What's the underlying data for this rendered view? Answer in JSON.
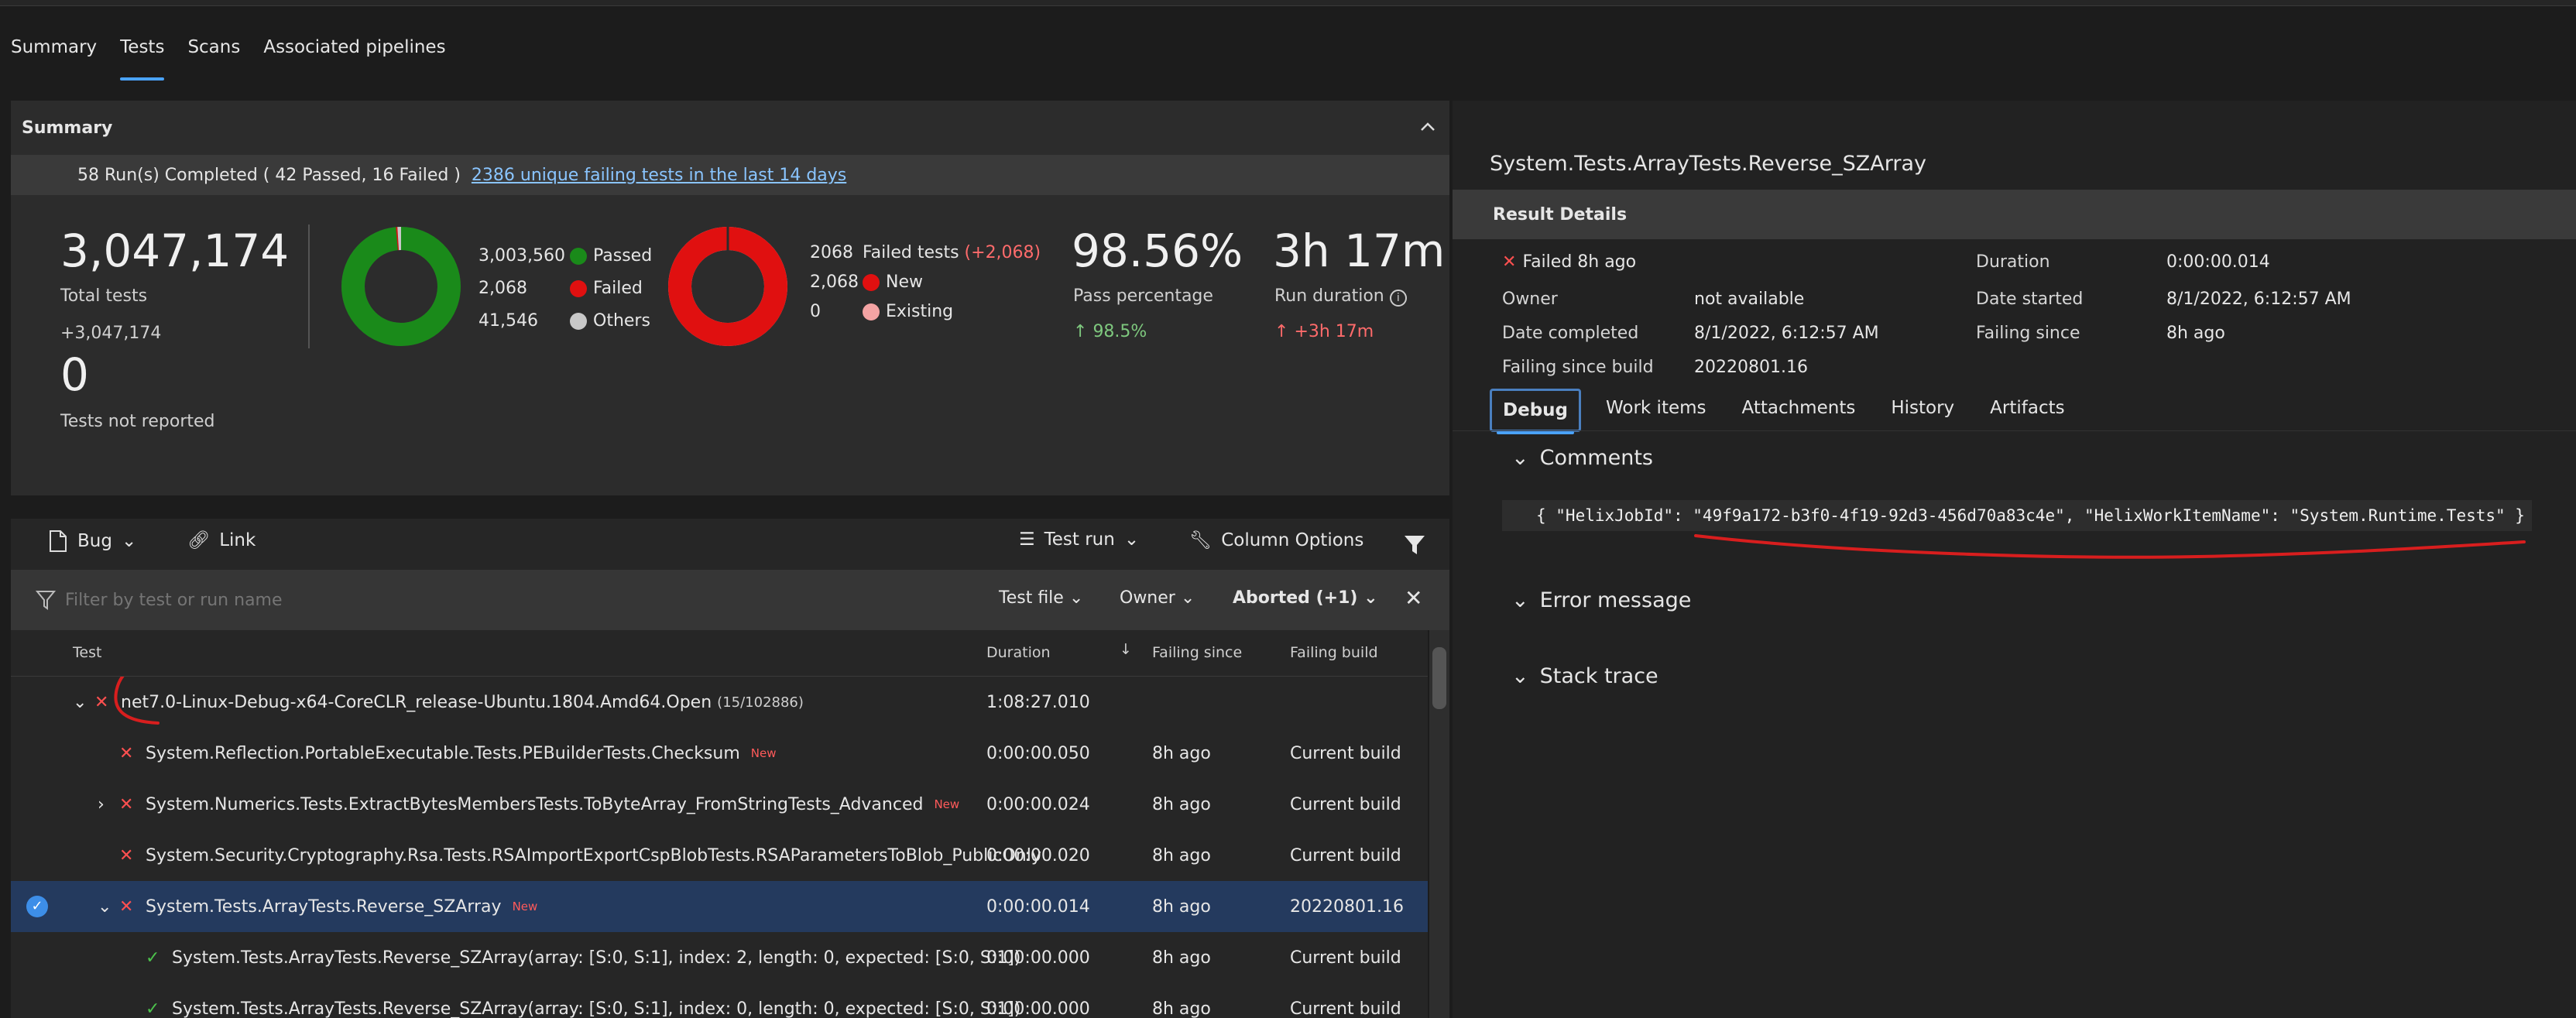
{
  "nav": {
    "tabs": [
      {
        "label": "Summary"
      },
      {
        "label": "Tests"
      },
      {
        "label": "Scans"
      },
      {
        "label": "Associated pipelines"
      }
    ],
    "active": "Tests"
  },
  "summary": {
    "header": "Summary",
    "runs_text": "58 Run(s) Completed ( 42 Passed, 16 Failed )",
    "unique_failing_link": "2386 unique failing tests in the last 14 days",
    "total_tests": "3,047,174",
    "total_tests_label": "Total tests",
    "total_delta": "+3,047,174",
    "not_reported": "0",
    "not_reported_label": "Tests not reported",
    "outcomes": [
      {
        "value": "3,003,560",
        "label": "Passed",
        "color": "#1a8a1a"
      },
      {
        "value": "2,068",
        "label": "Failed",
        "color": "#e01010"
      },
      {
        "value": "41,546",
        "label": "Others",
        "color": "#c8c8c8"
      }
    ],
    "outcome_fractions": {
      "passed": 0.9857,
      "failed": 0.0007,
      "others": 0.0136
    },
    "failed_title": "Failed tests",
    "failed_delta": "(+2,068)",
    "failed_breakdown": [
      {
        "value": "2068",
        "label": ""
      },
      {
        "value": "2,068",
        "label": "New",
        "color": "#e01010"
      },
      {
        "value": "0",
        "label": "Existing",
        "color": "#f4a3a3"
      }
    ],
    "new_fraction": 1.0,
    "pass_percentage": "98.56%",
    "pass_label": "Pass percentage",
    "pass_delta": "98.5%",
    "run_duration": "3h 17m",
    "run_label": "Run duration",
    "run_delta": "+3h 17m"
  },
  "toolbar": {
    "bug": "Bug",
    "link": "Link",
    "test_run": "Test run",
    "column_options": "Column Options"
  },
  "filter": {
    "placeholder": "Filter by test or run name",
    "test_file": "Test file",
    "owner": "Owner",
    "outcome": "Aborted (+1)"
  },
  "table": {
    "headers": {
      "test": "Test",
      "duration": "Duration",
      "failing_since": "Failing since",
      "failing_build": "Failing build"
    },
    "group": {
      "name": "net7.0-Linux-Debug-x64-CoreCLR_release-Ubuntu.1804.Amd64.Open",
      "count": "(15/102886)",
      "duration": "1:08:27.010"
    },
    "rows": [
      {
        "name": "System.Reflection.PortableExecutable.Tests.PEBuilderTests.Checksum",
        "tag": "New",
        "duration": "0:00:00.050",
        "since": "8h ago",
        "build": "Current build"
      },
      {
        "name": "System.Numerics.Tests.ExtractBytesMembersTests.ToByteArray_FromStringTests_Advanced",
        "tag": "New",
        "duration": "0:00:00.024",
        "since": "8h ago",
        "build": "Current build"
      },
      {
        "name": "System.Security.Cryptography.Rsa.Tests.RSAImportExportCspBlobTests.RSAParametersToBlob_PublicOnly",
        "tag": "",
        "duration": "0:00:00.020",
        "since": "8h ago",
        "build": "Current build"
      },
      {
        "name": "System.Tests.ArrayTests.Reverse_SZArray",
        "tag": "New",
        "duration": "0:00:00.014",
        "since": "8h ago",
        "build": "20220801.16"
      },
      {
        "name": "System.Tests.ArrayTests.Reverse_SZArray(array: [S:0, S:1], index: 2, length: 0, expected: [S:0, S:1])",
        "tag": "",
        "duration": "0:00:00.000",
        "since": "8h ago",
        "build": "Current build"
      },
      {
        "name": "System.Tests.ArrayTests.Reverse_SZArray(array: [S:0, S:1], index: 0, length: 0, expected: [S:0, S:1])",
        "tag": "",
        "duration": "0:00:00.000",
        "since": "8h ago",
        "build": "Current build"
      }
    ]
  },
  "details": {
    "title": "System.Tests.ArrayTests.Reverse_SZArray",
    "result_details": "Result Details",
    "status": "Failed 8h ago",
    "duration_label": "Duration",
    "duration": "0:00:00.014",
    "owner_label": "Owner",
    "owner": "not available",
    "date_started_label": "Date started",
    "date_started": "8/1/2022, 6:12:57 AM",
    "date_completed_label": "Date completed",
    "date_completed": "8/1/2022, 6:12:57 AM",
    "failing_since_label": "Failing since",
    "failing_since": "8h ago",
    "failing_since_build_label": "Failing since build",
    "failing_since_build": "20220801.16",
    "tabs": [
      "Debug",
      "Work items",
      "Attachments",
      "History",
      "Artifacts"
    ],
    "comments_label": "Comments",
    "comment": "{ \"HelixJobId\": \"49f9a172-b3f0-4f19-92d3-456d70a83c4e\", \"HelixWorkItemName\": \"System.Runtime.Tests\" }",
    "error_message_label": "Error message",
    "stack_trace_label": "Stack trace"
  }
}
